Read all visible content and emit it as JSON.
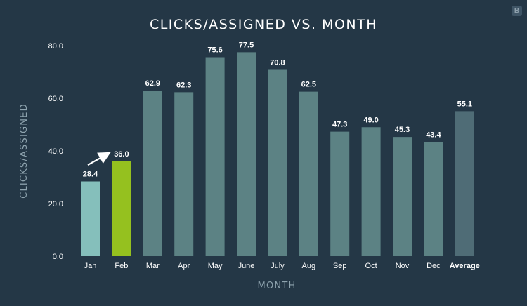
{
  "badge": {
    "label": "B"
  },
  "colors": {
    "background": "#243746",
    "bar_default": "#5c8284",
    "bar_jan": "#85bfbb",
    "bar_feb_highlight": "#95c11f",
    "bar_average": "#4f6c76",
    "text": "#ffffff",
    "axis_text": "#8ea3ae"
  },
  "chart_data": {
    "type": "bar",
    "title": "CLICKS/ASSIGNED VS. MONTH",
    "xlabel": "MONTH",
    "ylabel": "CLICKS/ASSIGNED",
    "ylim": [
      0,
      80
    ],
    "yticks": [
      "0.0",
      "20.0",
      "40.0",
      "60.0",
      "80.0"
    ],
    "categories": [
      "Jan",
      "Feb",
      "Mar",
      "Apr",
      "May",
      "June",
      "July",
      "Aug",
      "Sep",
      "Oct",
      "Nov",
      "Dec",
      "Average"
    ],
    "values": [
      28.4,
      36.0,
      62.9,
      62.3,
      75.6,
      77.5,
      70.8,
      62.5,
      47.3,
      49.0,
      45.3,
      43.4,
      55.1
    ],
    "value_labels": [
      "28.4",
      "36.0",
      "62.9",
      "62.3",
      "75.6",
      "77.5",
      "70.8",
      "62.5",
      "47.3",
      "49.0",
      "45.3",
      "43.4",
      "55.1"
    ],
    "highlight": "Feb",
    "grid": false,
    "legend": "none",
    "annotation": "arrow pointing to Feb"
  }
}
